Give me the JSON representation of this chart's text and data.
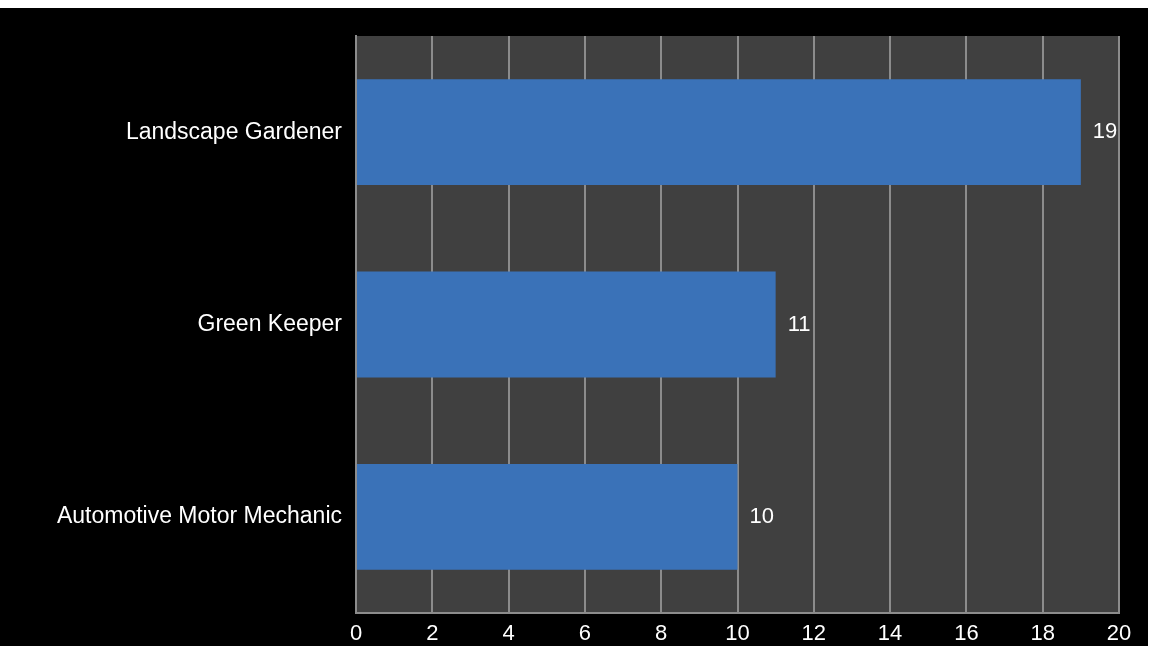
{
  "chart_data": {
    "type": "bar",
    "orientation": "horizontal",
    "categories": [
      "Landscape Gardener",
      "Green Keeper",
      "Automotive Motor Mechanic"
    ],
    "values": [
      19,
      11,
      10
    ],
    "color": "#3a72b8",
    "xlim": [
      0,
      20
    ],
    "xticks": [
      0,
      2,
      4,
      6,
      8,
      10,
      12,
      14,
      16,
      18,
      20
    ],
    "data_labels": true,
    "grid": "x"
  }
}
